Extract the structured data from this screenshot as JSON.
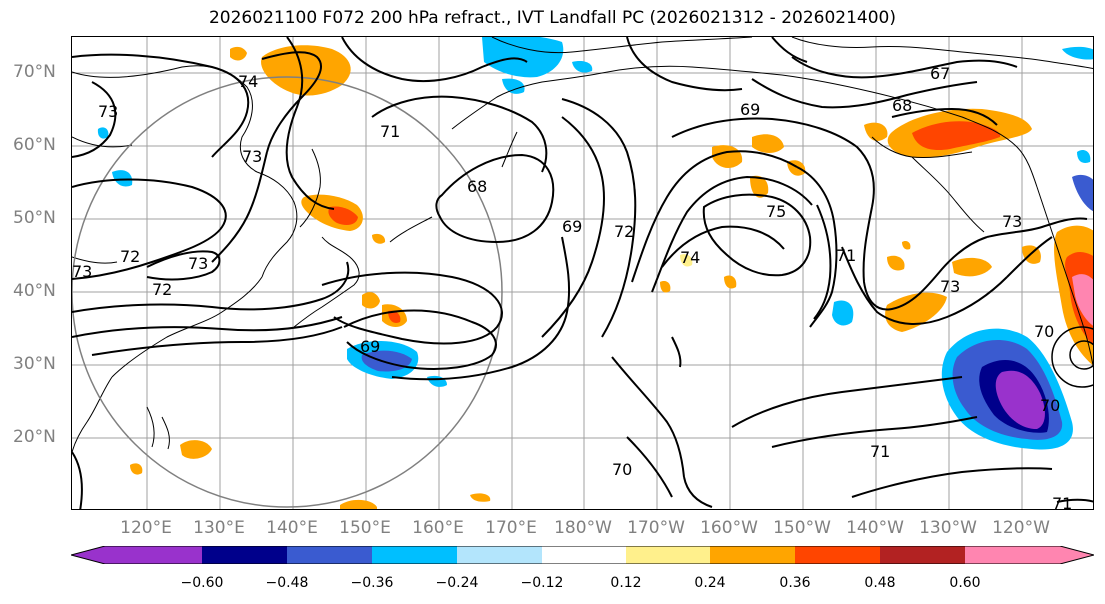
{
  "title": "2026021100 F072 200 hPa refract., IVT Landfall PC (2026021312 - 2026021400)",
  "lat_labels": [
    "70°N",
    "60°N",
    "50°N",
    "40°N",
    "30°N",
    "20°N"
  ],
  "lon_labels": [
    "120°E",
    "130°E",
    "140°E",
    "150°E",
    "160°E",
    "170°E",
    "180°W",
    "170°W",
    "160°W",
    "150°W",
    "140°W",
    "130°W",
    "120°W"
  ],
  "contour_labels": [
    "74",
    "73",
    "73",
    "71",
    "73",
    "72",
    "72",
    "73",
    "73",
    "69",
    "68",
    "69",
    "67",
    "68",
    "69",
    "72",
    "74",
    "75",
    "71",
    "73",
    "70",
    "70",
    "71",
    "70",
    "71"
  ],
  "colorbar": {
    "ticks": [
      "−0.60",
      "−0.48",
      "−0.36",
      "−0.24",
      "−0.12",
      "0.12",
      "0.24",
      "0.36",
      "0.48",
      "0.60"
    ],
    "colors": [
      "#9932cc",
      "#00008b",
      "#3a5bd0",
      "#00bfff",
      "#b3e5fc",
      "#ffffff",
      "#fff08c",
      "#ffa500",
      "#ff4500",
      "#b22222",
      "#ff85b0"
    ]
  }
}
